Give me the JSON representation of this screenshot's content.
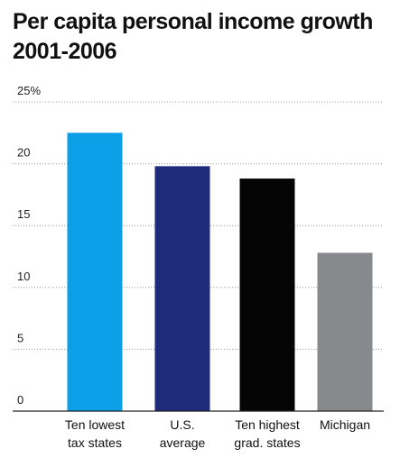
{
  "chart_data": {
    "type": "bar",
    "title_lines": [
      "Per capita personal income growth",
      "2001-2006"
    ],
    "categories": [
      [
        "Ten lowest",
        "tax states"
      ],
      [
        "U.S.",
        "average"
      ],
      [
        "Ten highest",
        "grad. states"
      ],
      [
        "Michigan"
      ]
    ],
    "values": [
      22.5,
      19.8,
      18.8,
      12.8
    ],
    "colors": [
      "#0a9fe6",
      "#1e2a7a",
      "#050505",
      "#87898d"
    ],
    "yticks": [
      "0",
      "5",
      "10",
      "15",
      "20",
      "25%"
    ],
    "ylim": [
      0,
      25
    ],
    "grid": true,
    "legend": false
  }
}
